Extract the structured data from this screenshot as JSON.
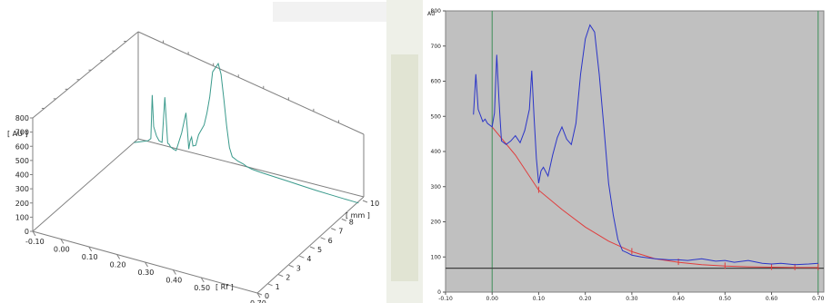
{
  "chart_data": [
    {
      "type": "line",
      "projection": "3d",
      "title": "",
      "zlabel": "[ AU ]",
      "xlabel": "[ Rf ]",
      "ylabel": "[ mm ]",
      "z_ticks": [
        0,
        100,
        200,
        300,
        400,
        500,
        600,
        700,
        800
      ],
      "x_ticks": [
        "-0.10",
        "0.00",
        "0.10",
        "0.20",
        "0.30",
        "0.40",
        "0.50",
        "0.70"
      ],
      "y_ticks": [
        "0",
        "1",
        "2",
        "3",
        "4",
        "5",
        "6",
        "7",
        "8",
        "10"
      ],
      "xlim": [
        -0.1,
        0.7
      ],
      "ylim": [
        0,
        10
      ],
      "zlim": [
        0,
        800
      ],
      "series": [
        {
          "color": "#3a9a8c",
          "x": [
            -0.1,
            -0.05,
            -0.04,
            -0.035,
            -0.03,
            -0.02,
            -0.01,
            0.0,
            0.01,
            0.02,
            0.025,
            0.03,
            0.04,
            0.05,
            0.07,
            0.085,
            0.09,
            0.095,
            0.1,
            0.105,
            0.11,
            0.12,
            0.13,
            0.15,
            0.16,
            0.17,
            0.18,
            0.2,
            0.21,
            0.22,
            0.23,
            0.24,
            0.25,
            0.27,
            0.29,
            0.3,
            0.32,
            0.35,
            0.4,
            0.45,
            0.5,
            0.55,
            0.6,
            0.65,
            0.7
          ],
          "y": [
            0,
            40,
            60,
            370,
            150,
            90,
            60,
            55,
            380,
            60,
            55,
            40,
            30,
            25,
            160,
            310,
            200,
            60,
            120,
            150,
            90,
            100,
            180,
            260,
            350,
            470,
            650,
            720,
            650,
            480,
            300,
            150,
            90,
            70,
            60,
            50,
            40,
            35,
            30,
            25,
            20,
            15,
            12,
            10,
            8
          ]
        }
      ]
    },
    {
      "type": "line",
      "title": "",
      "ylabel": "AU",
      "xlabel": "",
      "x_ticks": [
        "-0.10",
        "0.00",
        "0.10",
        "0.20",
        "0.30",
        "0.40",
        "0.50",
        "0.60",
        "0.70"
      ],
      "y_ticks": [
        "0",
        "100",
        "200",
        "300",
        "400",
        "500",
        "600",
        "700",
        "800"
      ],
      "xlim": [
        -0.1,
        0.7
      ],
      "ylim": [
        0,
        800
      ],
      "background": "#c0c0c0",
      "vertical_markers": [
        0.0,
        0.7
      ],
      "horizontal_marker": 68,
      "series": [
        {
          "color": "#2a34c8",
          "x": [
            -0.04,
            -0.035,
            -0.03,
            -0.02,
            -0.015,
            -0.01,
            0.0,
            0.005,
            0.01,
            0.015,
            0.02,
            0.03,
            0.04,
            0.05,
            0.06,
            0.07,
            0.08,
            0.085,
            0.09,
            0.095,
            0.1,
            0.105,
            0.11,
            0.12,
            0.13,
            0.14,
            0.15,
            0.16,
            0.17,
            0.18,
            0.19,
            0.2,
            0.21,
            0.22,
            0.23,
            0.24,
            0.25,
            0.26,
            0.27,
            0.28,
            0.29,
            0.3,
            0.32,
            0.35,
            0.38,
            0.4,
            0.42,
            0.45,
            0.48,
            0.5,
            0.52,
            0.55,
            0.58,
            0.6,
            0.62,
            0.65,
            0.68,
            0.7
          ],
          "y": [
            505,
            620,
            520,
            485,
            492,
            480,
            470,
            510,
            675,
            540,
            430,
            420,
            430,
            445,
            425,
            460,
            520,
            630,
            500,
            380,
            310,
            345,
            355,
            330,
            390,
            440,
            470,
            435,
            420,
            480,
            620,
            720,
            760,
            740,
            620,
            470,
            310,
            220,
            150,
            118,
            112,
            105,
            100,
            95,
            92,
            92,
            90,
            95,
            88,
            90,
            85,
            90,
            82,
            80,
            82,
            78,
            80,
            82
          ]
        },
        {
          "color": "#e03c3c",
          "x": [
            0.0,
            0.05,
            0.1,
            0.15,
            0.2,
            0.25,
            0.3,
            0.35,
            0.4,
            0.45,
            0.5,
            0.55,
            0.6,
            0.65,
            0.7
          ],
          "y": [
            470,
            390,
            290,
            235,
            185,
            145,
            115,
            95,
            85,
            78,
            74,
            72,
            71,
            70,
            70
          ]
        }
      ]
    }
  ]
}
